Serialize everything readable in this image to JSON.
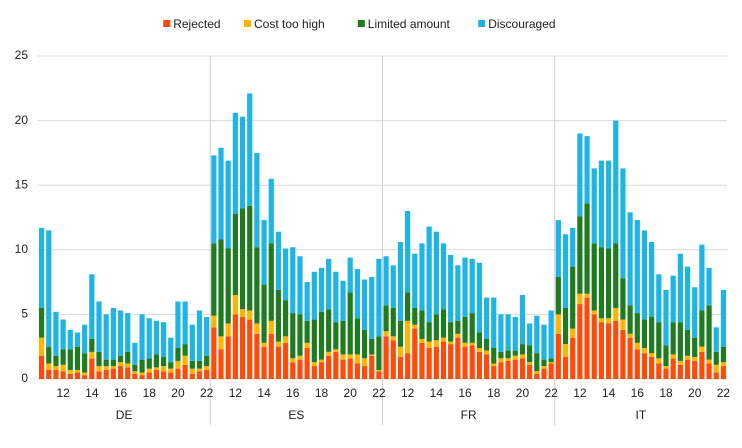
{
  "chart_data": {
    "type": "stacked_bar",
    "groups": [
      "DE",
      "ES",
      "FR",
      "IT"
    ],
    "categories": [
      null,
      null,
      null,
      "12",
      null,
      null,
      null,
      "14",
      null,
      null,
      null,
      "16",
      null,
      null,
      null,
      "18",
      null,
      null,
      null,
      "20",
      null,
      null,
      null,
      "22",
      null,
      null,
      null,
      "12",
      null,
      null,
      null,
      "14",
      null,
      null,
      null,
      "16",
      null,
      null,
      null,
      "18",
      null,
      null,
      null,
      "20",
      null,
      null,
      null,
      "22",
      null,
      null,
      null,
      "12",
      null,
      null,
      null,
      "14",
      null,
      null,
      null,
      "16",
      null,
      null,
      null,
      "18",
      null,
      null,
      null,
      "20",
      null,
      null,
      null,
      "22",
      null,
      null,
      null,
      "12",
      null,
      null,
      null,
      "14",
      null,
      null,
      null,
      "16",
      null,
      null,
      null,
      "18",
      null,
      null,
      null,
      "20",
      null,
      null,
      null,
      "22"
    ],
    "series": [
      {
        "name": "Rejected",
        "color": "#ff4b0a",
        "values": [
          1.8,
          0.7,
          0.7,
          0.6,
          0.4,
          0.5,
          0.3,
          1.6,
          0.6,
          0.7,
          0.8,
          1.0,
          0.9,
          0.4,
          0.3,
          0.5,
          0.7,
          0.6,
          0.5,
          0.8,
          1.1,
          0.4,
          0.6,
          0.7,
          4.0,
          2.3,
          3.3,
          5.0,
          4.8,
          4.6,
          3.5,
          2.5,
          3.5,
          2.5,
          2.8,
          1.3,
          1.5,
          2.4,
          1.0,
          1.3,
          1.8,
          2.1,
          1.5,
          1.6,
          1.2,
          1.0,
          1.8,
          0.6,
          3.3,
          3.0,
          1.7,
          2.0,
          3.9,
          2.8,
          2.4,
          2.5,
          2.9,
          2.7,
          3.2,
          2.5,
          2.6,
          2.1,
          1.9,
          1.0,
          1.3,
          1.4,
          1.5,
          1.6,
          1.1,
          0.4,
          0.8,
          1.2,
          3.5,
          1.7,
          3.2,
          5.8,
          6.3,
          5.0,
          4.4,
          4.3,
          4.5,
          3.8,
          3.2,
          2.3,
          2.0,
          1.7,
          1.2,
          0.8,
          1.6,
          1.1,
          1.5,
          1.4,
          2.1,
          1.2,
          0.5,
          1.0
        ]
      },
      {
        "name": "Cost too high",
        "color": "#ffb400",
        "values": [
          1.4,
          0.5,
          0.3,
          0.5,
          0.3,
          0.2,
          0.2,
          0.5,
          0.4,
          0.3,
          0.2,
          0.3,
          0.3,
          0.2,
          0.2,
          0.3,
          0.2,
          0.4,
          0.3,
          0.6,
          0.7,
          0.4,
          0.2,
          0.3,
          0.9,
          1.0,
          1.0,
          1.5,
          0.6,
          0.7,
          0.8,
          0.3,
          1.0,
          0.4,
          0.5,
          0.3,
          0.3,
          0.4,
          0.3,
          0.2,
          0.3,
          0.2,
          0.4,
          0.3,
          0.7,
          0.6,
          0.1,
          0.1,
          0.4,
          0.3,
          0.8,
          2.5,
          0.3,
          0.3,
          0.5,
          0.5,
          0.3,
          0.2,
          0.3,
          0.3,
          0.2,
          0.3,
          0.3,
          0.2,
          0.3,
          0.2,
          0.3,
          0.3,
          0.2,
          0.2,
          0.2,
          0.1,
          1.5,
          1.0,
          0.7,
          0.8,
          0.3,
          0.3,
          0.3,
          0.4,
          1.0,
          0.8,
          0.3,
          0.5,
          0.4,
          0.3,
          0.4,
          0.2,
          0.3,
          0.3,
          0.3,
          0.3,
          0.4,
          0.3,
          0.6,
          0.3
        ]
      },
      {
        "name": "Limited amount",
        "color": "#1e7b1e",
        "values": [
          2.3,
          1.3,
          0.8,
          1.2,
          1.6,
          1.8,
          1.5,
          1.0,
          1.1,
          0.5,
          0.5,
          0.5,
          0.9,
          0.5,
          1.0,
          0.8,
          1.0,
          0.7,
          0.5,
          1.0,
          0.9,
          0.6,
          0.6,
          0.8,
          5.6,
          7.5,
          5.8,
          6.3,
          7.8,
          8.1,
          5.9,
          4.5,
          6.0,
          4.0,
          2.8,
          3.5,
          3.2,
          1.7,
          3.3,
          3.7,
          3.3,
          2.1,
          2.6,
          4.8,
          2.8,
          2.2,
          1.2,
          2.6,
          2.0,
          2.2,
          2.0,
          2.2,
          1.3,
          2.2,
          1.5,
          2.0,
          2.2,
          1.5,
          1.0,
          2.0,
          2.3,
          1.2,
          0.9,
          1.2,
          0.5,
          0.6,
          0.4,
          0.8,
          1.3,
          1.4,
          0.5,
          0.3,
          2.9,
          2.8,
          4.8,
          6.0,
          7.0,
          5.2,
          5.5,
          5.4,
          5.0,
          3.2,
          2.2,
          2.3,
          2.2,
          2.8,
          2.8,
          1.6,
          2.5,
          3.0,
          2.0,
          1.5,
          2.8,
          4.2,
          1.0,
          1.2
        ]
      },
      {
        "name": "Discouraged",
        "color": "#1eb4e6",
        "values": [
          6.2,
          9.0,
          3.4,
          2.3,
          1.5,
          1.1,
          2.2,
          5.0,
          3.9,
          3.5,
          4.0,
          3.5,
          3.0,
          1.7,
          3.5,
          3.1,
          2.6,
          2.7,
          1.9,
          3.6,
          3.3,
          2.8,
          3.9,
          3.0,
          6.8,
          7.1,
          6.8,
          7.8,
          7.1,
          8.7,
          7.3,
          5.0,
          5.0,
          4.5,
          4.0,
          5.1,
          4.5,
          3.0,
          3.7,
          3.4,
          3.9,
          3.9,
          3.1,
          2.7,
          3.8,
          3.9,
          4.8,
          6.0,
          3.8,
          3.3,
          6.1,
          6.3,
          4.2,
          5.2,
          7.4,
          6.4,
          5.1,
          5.2,
          4.3,
          4.6,
          4.2,
          5.4,
          3.2,
          3.9,
          2.9,
          2.8,
          2.6,
          3.8,
          1.7,
          2.9,
          2.7,
          3.7,
          4.4,
          5.7,
          3.0,
          6.4,
          5.2,
          5.8,
          6.7,
          6.8,
          9.5,
          8.5,
          7.2,
          7.2,
          6.9,
          5.8,
          3.7,
          4.3,
          3.6,
          5.3,
          4.9,
          3.9,
          5.1,
          2.9,
          1.9,
          4.4
        ]
      }
    ],
    "ylim": [
      0,
      25
    ],
    "yticks": [
      0,
      5,
      10,
      15,
      20,
      25
    ],
    "grid": true,
    "legend": "top"
  }
}
